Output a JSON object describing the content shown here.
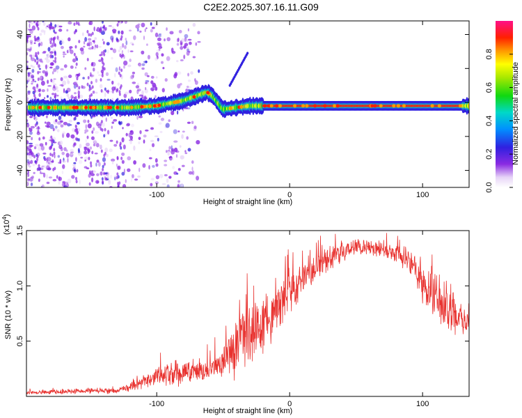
{
  "title": "C2E2.2025.307.16.11.G09",
  "chart_data": [
    {
      "type": "heatmap",
      "xlabel": "Height of straight line (km)",
      "ylabel": "Frequency (Hz)",
      "xlim": [
        -198,
        135
      ],
      "ylim": [
        -50,
        48
      ],
      "xticks": [
        -100,
        0,
        100
      ],
      "yticks": [
        -40,
        -20,
        0,
        20,
        40
      ],
      "colorbar": {
        "label": "Normalized spectral amplitude",
        "range": [
          0,
          1
        ],
        "ticks": [
          0.0,
          0.2,
          0.4,
          0.6,
          0.8
        ],
        "tick_labels": [
          "0.0",
          "0.2",
          "0.4",
          "0.6",
          "0.8"
        ]
      },
      "ridge": [
        [
          -198,
          -3
        ],
        [
          -150,
          -3
        ],
        [
          -120,
          -3
        ],
        [
          -100,
          -2
        ],
        [
          -80,
          1
        ],
        [
          -62,
          6
        ],
        [
          -58,
          4
        ],
        [
          -50,
          -4
        ],
        [
          -40,
          -3
        ],
        [
          -30,
          -2
        ],
        [
          -20,
          -2
        ],
        [
          -10,
          -2
        ],
        [
          0,
          -2
        ],
        [
          10,
          -2
        ],
        [
          60,
          -2
        ],
        [
          100,
          -2
        ],
        [
          135,
          -2
        ]
      ],
      "hot_segment_x": [
        -20,
        130
      ]
    },
    {
      "type": "line",
      "xlabel": "Height of straight line (km)",
      "ylabel": "SNR (10 * v/v)",
      "multiplier_label": "(x10",
      "multiplier_exp": "4",
      "multiplier_close": ")",
      "xlim": [
        -198,
        135
      ],
      "ylim": [
        0,
        1.5
      ],
      "xticks": [
        -100,
        0,
        100
      ],
      "yticks": [
        0.5,
        1.0,
        1.5
      ],
      "ytick_labels": [
        "0.5",
        "1.0",
        "1.5"
      ],
      "color": "#e8312e",
      "trend": [
        [
          -198,
          0.03
        ],
        [
          -160,
          0.05
        ],
        [
          -130,
          0.05
        ],
        [
          -115,
          0.1
        ],
        [
          -100,
          0.18
        ],
        [
          -80,
          0.22
        ],
        [
          -60,
          0.25
        ],
        [
          -50,
          0.3
        ],
        [
          -40,
          0.45
        ],
        [
          -30,
          0.6
        ],
        [
          -20,
          0.65
        ],
        [
          -10,
          0.8
        ],
        [
          0,
          0.95
        ],
        [
          10,
          1.05
        ],
        [
          20,
          1.15
        ],
        [
          30,
          1.25
        ],
        [
          40,
          1.3
        ],
        [
          50,
          1.35
        ],
        [
          60,
          1.35
        ],
        [
          70,
          1.32
        ],
        [
          80,
          1.28
        ],
        [
          90,
          1.22
        ],
        [
          100,
          1.05
        ],
        [
          110,
          0.9
        ],
        [
          120,
          0.8
        ],
        [
          130,
          0.72
        ],
        [
          135,
          0.7
        ]
      ],
      "noise": [
        [
          -198,
          0.02
        ],
        [
          -130,
          0.03
        ],
        [
          -115,
          0.06
        ],
        [
          -100,
          0.1
        ],
        [
          -80,
          0.14
        ],
        [
          -60,
          0.12
        ],
        [
          -50,
          0.18
        ],
        [
          -40,
          0.4
        ],
        [
          -30,
          0.4
        ],
        [
          -20,
          0.35
        ],
        [
          -10,
          0.25
        ],
        [
          0,
          0.2
        ],
        [
          20,
          0.15
        ],
        [
          40,
          0.1
        ],
        [
          60,
          0.08
        ],
        [
          80,
          0.1
        ],
        [
          95,
          0.18
        ],
        [
          110,
          0.3
        ],
        [
          125,
          0.25
        ],
        [
          135,
          0.15
        ]
      ]
    }
  ]
}
